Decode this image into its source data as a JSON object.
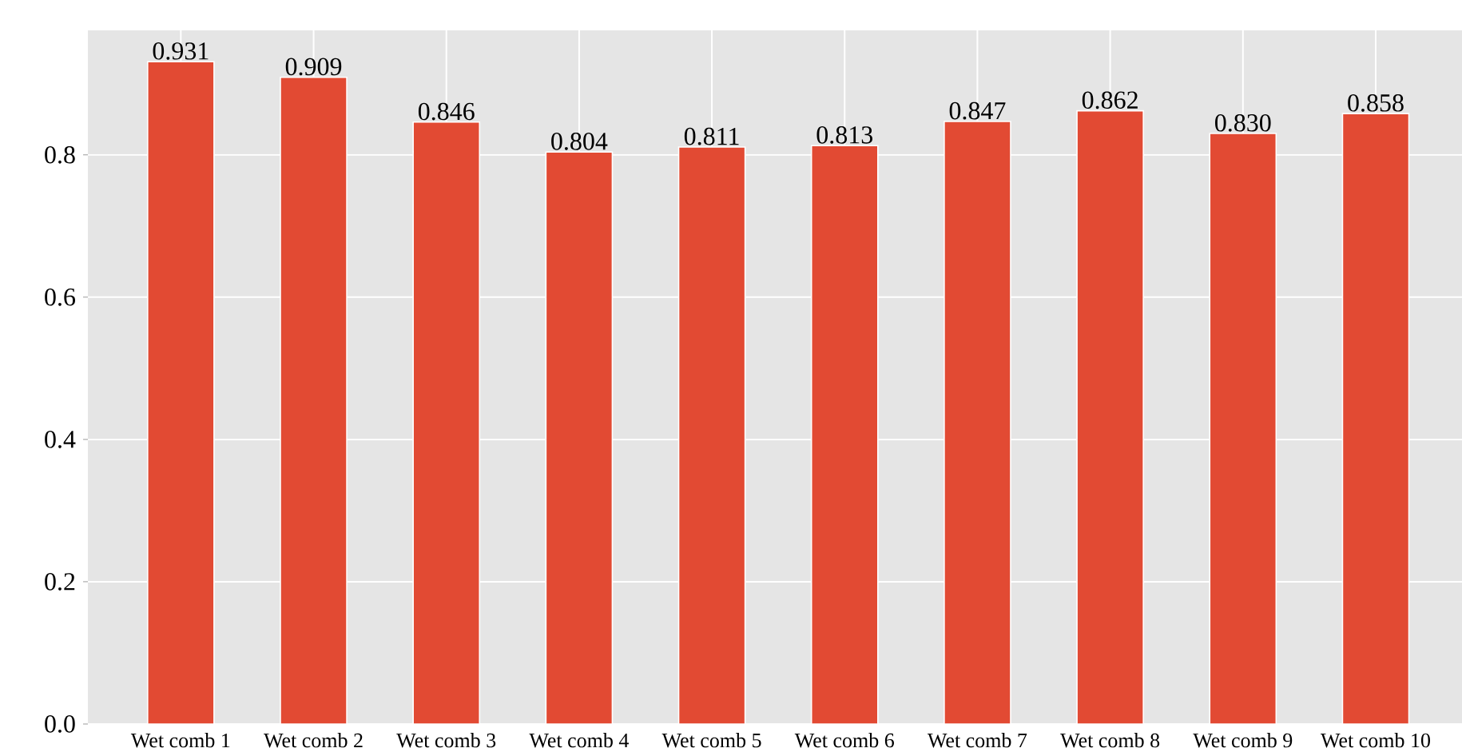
{
  "chart_data": {
    "type": "bar",
    "categories": [
      "Wet comb 1",
      "Wet comb 2",
      "Wet comb 3",
      "Wet comb 4",
      "Wet comb 5",
      "Wet comb 6",
      "Wet comb 7",
      "Wet comb 8",
      "Wet comb 9",
      "Wet comb 10"
    ],
    "values": [
      0.931,
      0.909,
      0.846,
      0.804,
      0.811,
      0.813,
      0.847,
      0.862,
      0.83,
      0.858
    ],
    "value_labels": [
      "0.931",
      "0.909",
      "0.846",
      "0.804",
      "0.811",
      "0.813",
      "0.847",
      "0.862",
      "0.830",
      "0.858"
    ],
    "color": "#e24a33",
    "ylim": [
      0,
      0.975
    ],
    "yticks": [
      {
        "value": 0,
        "label": "0.0"
      },
      {
        "value": 0.2,
        "label": "0.2"
      },
      {
        "value": 0.4,
        "label": "0.4"
      },
      {
        "value": 0.6,
        "label": "0.6"
      },
      {
        "value": 0.8,
        "label": "0.8"
      }
    ],
    "grid": true
  }
}
